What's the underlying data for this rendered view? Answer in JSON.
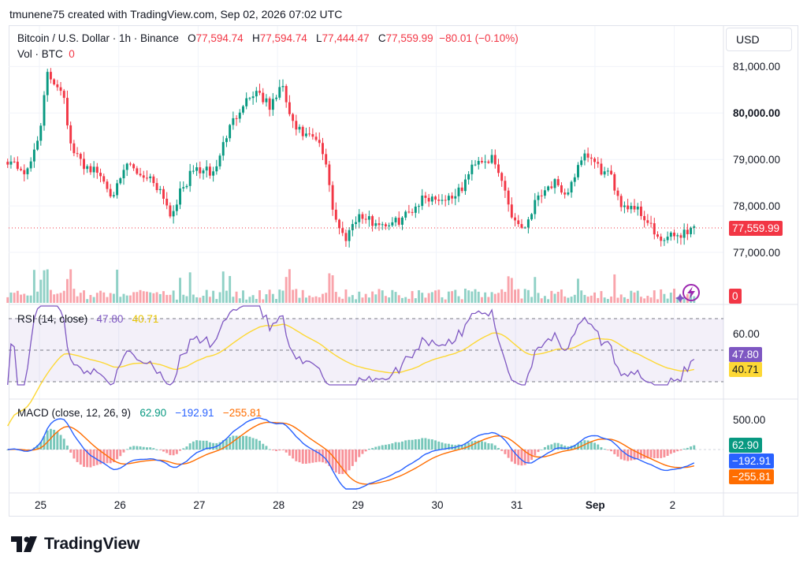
{
  "header": {
    "created_text": "tmunene75 created with TradingView.com, Sep 02, 2026 07:02 UTC"
  },
  "legend": {
    "symbol": "Bitcoin / U.S. Dollar · 1h · Binance",
    "open_label": "O",
    "open_value": "77,594.74",
    "high_label": "H",
    "high_value": "77,594.74",
    "low_label": "L",
    "low_value": "77,444.47",
    "close_label": "C",
    "close_value": "77,559.99",
    "change": "−80.01 (−0.10%)",
    "vol_label": "Vol · BTC",
    "vol_value": "0",
    "rsi_label": "RSI (14, close)",
    "rsi_value": "47.80",
    "rsi_ma_value": "40.71",
    "macd_label": "MACD (close, 12, 26, 9)",
    "macd_hist": "62.90",
    "macd_line": "−192.91",
    "macd_signal": "−255.81"
  },
  "currency_button": "USD",
  "price_axis": {
    "ticks": [
      "81,000.00",
      "80,000.00",
      "79,000.00",
      "78,000.00",
      "77,000.00"
    ],
    "last_price": "77,559.99",
    "vol_tag": "0"
  },
  "rsi_axis": {
    "tick": "60.00",
    "rsi_tag": "47.80",
    "ma_tag": "40.71"
  },
  "macd_axis": {
    "tick": "500.00",
    "hist_tag": "62.90",
    "macd_tag": "−192.91",
    "signal_tag": "−255.81"
  },
  "time_axis": [
    "25",
    "26",
    "27",
    "28",
    "29",
    "30",
    "31",
    "Sep",
    "2"
  ],
  "brand": {
    "name": "TradingView"
  },
  "colors": {
    "up": "#089981",
    "down": "#f23645",
    "rsi": "#7e57c2",
    "rsi_ma": "#fdd835",
    "macd": "#2962ff",
    "signal": "#ff6d00"
  },
  "chart_data": [
    {
      "type": "candlestick",
      "title": "Bitcoin / U.S. Dollar · 1h · Binance",
      "x_ticks": [
        "25",
        "26",
        "27",
        "28",
        "29",
        "30",
        "31",
        "Sep",
        "2"
      ],
      "y_ticks": [
        81000,
        80000,
        79000,
        78000,
        77000
      ],
      "ylim": [
        76500,
        81500
      ],
      "close_anchors": [
        [
          24.6,
          79000
        ],
        [
          24.85,
          78700
        ],
        [
          25.0,
          79600
        ],
        [
          25.1,
          80800
        ],
        [
          25.3,
          80500
        ],
        [
          25.4,
          79200
        ],
        [
          25.55,
          78900
        ],
        [
          25.75,
          78700
        ],
        [
          25.9,
          78300
        ],
        [
          26.0,
          78400
        ],
        [
          26.1,
          78900
        ],
        [
          26.25,
          78700
        ],
        [
          26.4,
          78600
        ],
        [
          26.55,
          78300
        ],
        [
          26.65,
          77800
        ],
        [
          26.75,
          78200
        ],
        [
          26.95,
          78800
        ],
        [
          27.2,
          78700
        ],
        [
          27.35,
          79500
        ],
        [
          27.55,
          80200
        ],
        [
          27.75,
          80500
        ],
        [
          27.9,
          80100
        ],
        [
          28.05,
          80600
        ],
        [
          28.2,
          79700
        ],
        [
          28.35,
          79500
        ],
        [
          28.5,
          79400
        ],
        [
          28.62,
          78900
        ],
        [
          28.7,
          77900
        ],
        [
          28.78,
          77500
        ],
        [
          28.85,
          77300
        ],
        [
          29.0,
          77800
        ],
        [
          29.2,
          77650
        ],
        [
          29.45,
          77600
        ],
        [
          29.65,
          77850
        ],
        [
          29.85,
          78200
        ],
        [
          30.1,
          78150
        ],
        [
          30.3,
          78300
        ],
        [
          30.5,
          79000
        ],
        [
          30.7,
          79000
        ],
        [
          30.85,
          78450
        ],
        [
          30.95,
          77800
        ],
        [
          31.1,
          77500
        ],
        [
          31.3,
          78300
        ],
        [
          31.5,
          78500
        ],
        [
          31.6,
          78100
        ],
        [
          31.75,
          78700
        ],
        [
          31.9,
          79100
        ],
        [
          32.05,
          78800
        ],
        [
          32.2,
          78600
        ],
        [
          32.35,
          78000
        ],
        [
          32.5,
          78000
        ],
        [
          32.7,
          77600
        ],
        [
          32.8,
          77200
        ],
        [
          32.9,
          77300
        ],
        [
          33.0,
          77350
        ],
        [
          33.15,
          77450
        ],
        [
          33.25,
          77560
        ]
      ],
      "last_price": 77559.99
    },
    {
      "type": "bar",
      "title": "Vol · BTC",
      "values_note_hidden": true
    },
    {
      "type": "line",
      "title": "RSI (14, close)",
      "series": [
        {
          "name": "RSI",
          "last": 47.8
        },
        {
          "name": "RSI MA",
          "last": 40.71
        }
      ],
      "y_ticks": [
        60
      ],
      "bands": [
        70,
        50,
        30
      ]
    },
    {
      "type": "line",
      "title": "MACD (close, 12, 26, 9)",
      "series": [
        {
          "name": "MACD",
          "last": -192.91
        },
        {
          "name": "Signal",
          "last": -255.81
        },
        {
          "name": "Histogram",
          "last": 62.9
        }
      ],
      "y_ticks": [
        500
      ]
    }
  ]
}
